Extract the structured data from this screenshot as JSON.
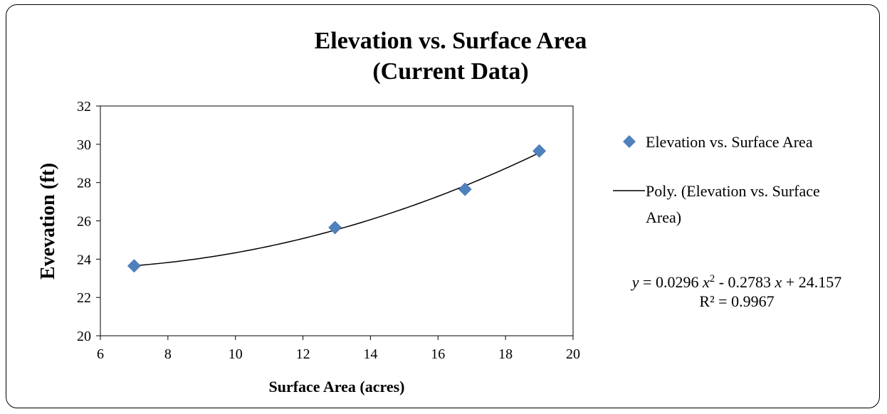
{
  "chart_data": {
    "type": "scatter",
    "title": [
      "Elevation vs. Surface Area",
      "(Current Data)"
    ],
    "xlabel": "Surface Area (acres)",
    "ylabel": "Evevation (ft)",
    "xlim": [
      6,
      20
    ],
    "ylim": [
      20,
      32
    ],
    "xticks": [
      "6",
      "8",
      "10",
      "12",
      "14",
      "16",
      "18",
      "20"
    ],
    "yticks": [
      "20",
      "22",
      "24",
      "26",
      "28",
      "30",
      "32"
    ],
    "grid": false,
    "legend_position": "right",
    "series": [
      {
        "name": "Elevation vs. Surface Area",
        "marker": "diamond",
        "color": "#4F81BD",
        "x": [
          7.0,
          12.95,
          16.8,
          19.0
        ],
        "y": [
          23.65,
          25.65,
          27.65,
          29.65
        ]
      }
    ],
    "trendline": {
      "name": [
        "Poly. (Elevation vs. Surface",
        "Area)"
      ],
      "type": "polynomial",
      "order": 2,
      "coefficients": [
        0.0296,
        -0.2783,
        24.157
      ],
      "x_range": [
        7.0,
        19.0
      ],
      "color": "#000000",
      "equation_text": {
        "y": "y",
        "eq_part1": " = 0.0296 ",
        "x1": "x",
        "sup": "2",
        "eq_part2": " - 0.2783 ",
        "x2": "x",
        "eq_part3": " + 24.157"
      },
      "r_squared_text": "R² = 0.9967"
    }
  }
}
